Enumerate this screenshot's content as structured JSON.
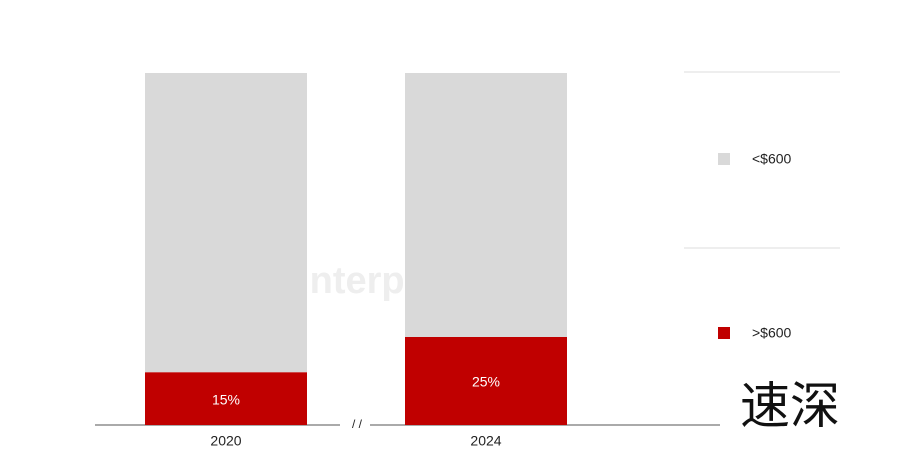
{
  "chart_data": {
    "type": "stacked_bar",
    "categories": [
      "2020",
      "2024"
    ],
    "series": [
      {
        "name": ">$600",
        "color": "#c00000",
        "values": [
          15,
          25
        ],
        "value_labels": [
          "15%",
          "25%"
        ]
      },
      {
        "name": "<$600",
        "color": "#d9d9d9",
        "values": [
          85,
          75
        ]
      }
    ],
    "axis_break": "/ /",
    "watermark": "Counterpoint",
    "stamp": "速深"
  }
}
